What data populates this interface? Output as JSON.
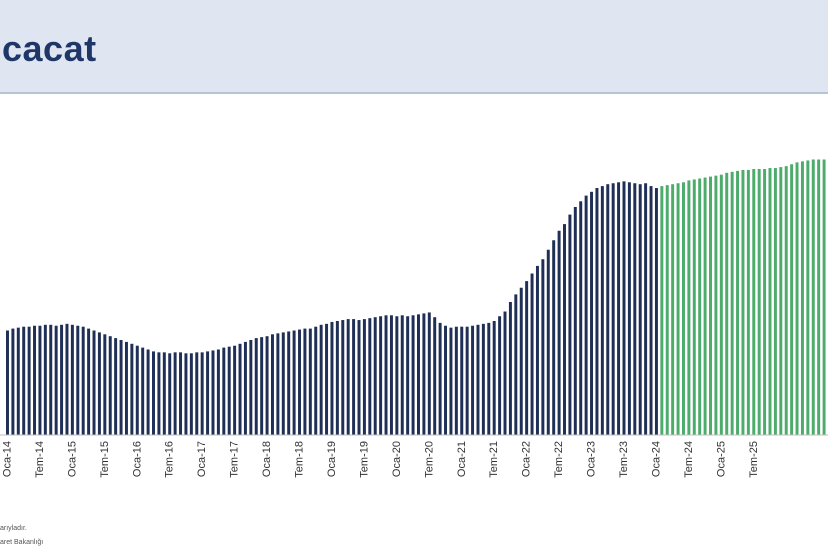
{
  "header": {
    "title": "cacat"
  },
  "footnotes": [
    "arıyladır.",
    "aret Bakanlığı"
  ],
  "colors": {
    "actual": "#1f2f55",
    "forecast": "#4dab6b",
    "header_bg": "#dfe6f2",
    "title": "#1f3668"
  },
  "chart_data": {
    "type": "bar",
    "title": "",
    "xlabel": "",
    "ylabel": "",
    "tick_labels": [
      "Oca-14",
      "Tem-14",
      "Oca-15",
      "Tem-15",
      "Oca-16",
      "Tem-16",
      "Oca-17",
      "Tem-17",
      "Oca-18",
      "Tem-18",
      "Oca-19",
      "Tem-19",
      "Oca-20",
      "Tem-20",
      "Oca-21",
      "Tem-21",
      "Oca-22",
      "Tem-22",
      "Oca-23",
      "Tem-23",
      "Oca-24",
      "Tem-24",
      "Oca-25",
      "Tem-25"
    ],
    "ylim": [
      0,
      300
    ],
    "series": [
      {
        "role": "actual",
        "values": [
          110,
          112,
          113,
          114,
          114,
          115,
          115,
          116,
          116,
          115,
          116,
          117,
          116,
          115,
          114,
          112,
          110,
          108,
          106,
          104,
          102,
          100,
          98,
          96,
          94,
          92,
          90,
          88,
          87,
          87,
          86,
          87,
          87,
          86,
          86,
          87,
          87,
          88,
          89,
          90,
          92,
          93,
          94,
          96,
          98,
          100,
          102,
          103,
          104,
          106,
          107,
          108,
          109,
          110,
          111,
          112,
          112,
          114,
          116,
          117,
          119,
          120,
          121,
          122,
          122,
          121,
          122,
          123,
          124,
          125,
          126,
          126,
          125,
          126,
          125,
          126,
          127,
          128,
          129,
          124,
          118,
          115,
          113,
          114,
          114,
          114,
          115,
          116,
          117,
          118,
          120,
          125,
          130,
          140,
          148,
          155,
          162,
          170,
          178,
          185,
          195,
          205,
          215,
          222,
          232,
          240,
          246,
          252,
          256,
          260,
          262,
          264,
          265,
          266,
          267,
          266,
          265,
          264,
          265,
          262,
          260
        ],
        "color": "#1f2f55"
      },
      {
        "role": "forecast",
        "values": [
          262,
          263,
          264,
          265,
          266,
          268,
          269,
          270,
          271,
          272,
          273,
          274,
          276,
          277,
          278,
          279,
          279,
          280,
          280,
          280,
          281,
          281,
          282,
          283,
          285,
          287,
          288,
          289,
          290,
          290,
          290
        ],
        "color": "#4dab6b"
      }
    ]
  }
}
